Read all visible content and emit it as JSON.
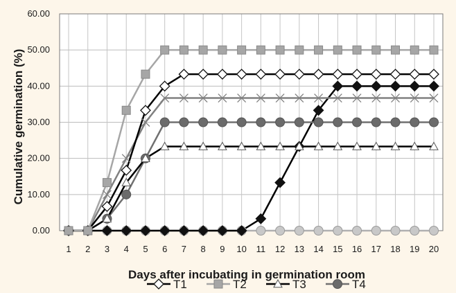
{
  "chart_data": {
    "type": "line",
    "xlabel": "Days after incubating in germination room",
    "ylabel": "Cumulative germination  (%)",
    "x": [
      1,
      2,
      3,
      4,
      5,
      6,
      7,
      8,
      9,
      10,
      11,
      12,
      13,
      14,
      15,
      16,
      17,
      18,
      19,
      20
    ],
    "x_tick_labels": [
      "1",
      "2",
      "3",
      "4",
      "5",
      "6",
      "7",
      "8",
      "9",
      "10",
      "11",
      "12",
      "13",
      "14",
      "15",
      "16",
      "17",
      "18",
      "19",
      "20"
    ],
    "ylim": [
      0,
      60
    ],
    "y_ticks": [
      0,
      10,
      20,
      30,
      40,
      50,
      60
    ],
    "y_tick_labels": [
      "0.00",
      "10.00",
      "20.00",
      "30.00",
      "40.00",
      "50.00",
      "60.00"
    ],
    "grid": "vertical and horizontal",
    "legend_position": "bottom",
    "series": [
      {
        "name": "T1",
        "marker": "diamond-open",
        "color": "#000000",
        "values": [
          0,
          0,
          6.7,
          16.7,
          33.3,
          40,
          43.3,
          43.3,
          43.3,
          43.3,
          43.3,
          43.3,
          43.3,
          43.3,
          43.3,
          43.3,
          43.3,
          43.3,
          43.3,
          43.3
        ]
      },
      {
        "name": "T2",
        "marker": "square-filled",
        "color": "#a6a6a6",
        "values": [
          0,
          0,
          13.3,
          33.3,
          43.3,
          50,
          50,
          50,
          50,
          50,
          50,
          50,
          50,
          50,
          50,
          50,
          50,
          50,
          50,
          50
        ]
      },
      {
        "name": "T3",
        "marker": "triangle-open",
        "color": "#000000",
        "values": [
          0,
          0,
          3.3,
          13.3,
          20,
          23.3,
          23.3,
          23.3,
          23.3,
          23.3,
          23.3,
          23.3,
          23.3,
          23.3,
          23.3,
          23.3,
          23.3,
          23.3,
          23.3,
          23.3
        ]
      },
      {
        "name": "T4",
        "marker": "circle-filled",
        "color": "#707070",
        "values": [
          0,
          0,
          3.3,
          10,
          20,
          30,
          30,
          30,
          30,
          30,
          30,
          30,
          30,
          30,
          30,
          30,
          30,
          30,
          30,
          30
        ]
      },
      {
        "marker": "x-cross",
        "color": "#808080",
        "values": [
          0,
          0,
          10,
          20,
          30,
          36.7,
          36.7,
          36.7,
          36.7,
          36.7,
          36.7,
          36.7,
          36.7,
          36.7,
          36.7,
          36.7,
          36.7,
          36.7,
          36.7,
          36.7
        ]
      },
      {
        "marker": "diamond-filled",
        "color": "#000000",
        "values": [
          0,
          0,
          0,
          0,
          0,
          0,
          0,
          0,
          0,
          0,
          3.3,
          13.3,
          23.3,
          33.3,
          40,
          40,
          40,
          40,
          40,
          40
        ]
      },
      {
        "marker": "circle-light",
        "color": "#b0b0b0",
        "values": [
          0,
          0,
          0,
          0,
          0,
          0,
          0,
          0,
          0,
          0,
          0,
          0,
          0,
          0,
          0,
          0,
          0,
          0,
          0,
          0
        ]
      }
    ]
  }
}
